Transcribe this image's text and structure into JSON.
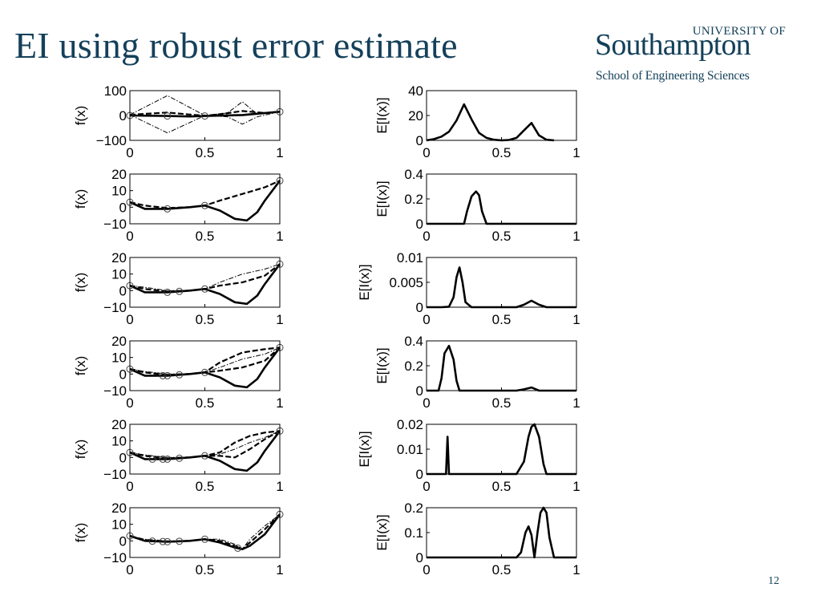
{
  "slide": {
    "title": "EI using robust error estimate",
    "page_number": "12"
  },
  "logo": {
    "university_of": "UNIVERSITY OF",
    "name": "Southampton",
    "school": "School of Engineering Sciences"
  },
  "colors": {
    "title": "#14405a",
    "plot": "#000000"
  },
  "chart_data": [
    {
      "type": "line",
      "panel": "left-1",
      "ylabel": "f(x)",
      "xlabel": "",
      "xlim": [
        0,
        1
      ],
      "ylim": [
        -100,
        100
      ],
      "xticks": [
        "0",
        "0.5",
        "1"
      ],
      "yticks": [
        "100",
        "0",
        "−100"
      ],
      "samples": [
        0,
        0.25,
        0.5,
        1
      ],
      "series": [
        {
          "style": "solid",
          "x": [
            0,
            0.25,
            0.4,
            0.5,
            0.75,
            1
          ],
          "y": [
            0,
            -2,
            -4,
            -2,
            2,
            15
          ]
        },
        {
          "style": "dashed",
          "x": [
            0,
            0.25,
            0.4,
            0.5,
            0.6,
            0.75,
            0.9,
            1
          ],
          "y": [
            3,
            12,
            4,
            -1,
            5,
            18,
            10,
            15
          ]
        },
        {
          "style": "dashdot",
          "x": [
            0,
            0.25,
            0.5,
            0.65,
            0.75,
            0.85,
            1
          ],
          "y": [
            3,
            80,
            0,
            10,
            55,
            5,
            15
          ]
        },
        {
          "style": "dashdot",
          "x": [
            0,
            0.25,
            0.5,
            0.65,
            0.75,
            0.85,
            1
          ],
          "y": [
            3,
            -70,
            0,
            -5,
            -35,
            -5,
            15
          ]
        }
      ]
    },
    {
      "type": "line",
      "panel": "right-1",
      "ylabel": "E[I(x)]",
      "xlabel": "",
      "xlim": [
        0,
        1
      ],
      "ylim": [
        0,
        40
      ],
      "xticks": [
        "0",
        "0.5",
        "1"
      ],
      "yticks": [
        "40",
        "20",
        "0"
      ],
      "series": [
        {
          "style": "solid",
          "x": [
            0,
            0.05,
            0.1,
            0.15,
            0.2,
            0.25,
            0.3,
            0.35,
            0.4,
            0.45,
            0.5,
            0.55,
            0.6,
            0.65,
            0.7,
            0.75,
            0.8,
            0.85
          ],
          "y": [
            0,
            1,
            3,
            7,
            16,
            29,
            17,
            6,
            2,
            0.5,
            0,
            0.3,
            2,
            8,
            14,
            4,
            0.5,
            0
          ]
        }
      ]
    },
    {
      "type": "line",
      "panel": "left-2",
      "ylabel": "f(x)",
      "xlabel": "",
      "xlim": [
        0,
        1
      ],
      "ylim": [
        -10,
        20
      ],
      "xticks": [
        "0",
        "0.5",
        "1"
      ],
      "yticks": [
        "20",
        "10",
        "0",
        "−10"
      ],
      "samples": [
        0,
        0.25,
        0.5,
        1
      ],
      "series": [
        {
          "style": "solid",
          "x": [
            0,
            0.1,
            0.25,
            0.4,
            0.5,
            0.6,
            0.7,
            0.78,
            0.85,
            0.9,
            1
          ],
          "y": [
            3,
            -1,
            -1,
            0,
            1,
            -2,
            -7,
            -8,
            -3,
            4,
            16
          ]
        },
        {
          "style": "dashed",
          "x": [
            0,
            0.1,
            0.25,
            0.4,
            0.5,
            0.6,
            0.75,
            0.9,
            1
          ],
          "y": [
            3,
            1,
            -0.5,
            0,
            1,
            4,
            8,
            12,
            16
          ]
        }
      ]
    },
    {
      "type": "line",
      "panel": "right-2",
      "ylabel": "E[I(x)]",
      "xlabel": "",
      "xlim": [
        0,
        1
      ],
      "ylim": [
        0,
        0.4
      ],
      "xticks": [
        "0",
        "0.5",
        "1"
      ],
      "yticks": [
        "0.4",
        "0.2",
        "0"
      ],
      "series": [
        {
          "style": "solid",
          "x": [
            0,
            0.22,
            0.25,
            0.27,
            0.3,
            0.33,
            0.35,
            0.37,
            0.4,
            0.45,
            1
          ],
          "y": [
            0,
            0,
            0,
            0.1,
            0.22,
            0.26,
            0.23,
            0.1,
            0,
            0,
            0
          ]
        }
      ]
    },
    {
      "type": "line",
      "panel": "left-3",
      "ylabel": "f(x)",
      "xlabel": "",
      "xlim": [
        0,
        1
      ],
      "ylim": [
        -10,
        20
      ],
      "xticks": [
        "0",
        "0.5",
        "1"
      ],
      "yticks": [
        "20",
        "10",
        "0",
        "−10"
      ],
      "samples": [
        0,
        0.25,
        0.33,
        0.5,
        1
      ],
      "series": [
        {
          "style": "solid",
          "x": [
            0,
            0.1,
            0.25,
            0.4,
            0.5,
            0.6,
            0.7,
            0.78,
            0.85,
            0.9,
            1
          ],
          "y": [
            3,
            -1,
            -1,
            0,
            1,
            -2,
            -7,
            -8,
            -3,
            4,
            16
          ]
        },
        {
          "style": "dashed",
          "x": [
            0,
            0.1,
            0.25,
            0.4,
            0.5,
            0.6,
            0.75,
            0.9,
            1
          ],
          "y": [
            3,
            1,
            -0.5,
            0,
            1,
            3,
            5,
            9,
            16
          ]
        },
        {
          "style": "dashdot",
          "x": [
            0,
            0.1,
            0.25,
            0.4,
            0.5,
            0.6,
            0.75,
            0.9,
            1
          ],
          "y": [
            3,
            2,
            0,
            0,
            1,
            5,
            10,
            13,
            16
          ]
        }
      ]
    },
    {
      "type": "line",
      "panel": "right-3",
      "ylabel": "E[I(x)]",
      "xlabel": "",
      "xlim": [
        0,
        1
      ],
      "ylim": [
        0,
        0.01
      ],
      "xticks": [
        "0",
        "0.5",
        "1"
      ],
      "yticks": [
        "0.01",
        "0.005",
        "0"
      ],
      "series": [
        {
          "style": "solid",
          "x": [
            0,
            0.1,
            0.15,
            0.18,
            0.2,
            0.22,
            0.24,
            0.26,
            0.3,
            0.6,
            0.65,
            0.7,
            0.75,
            0.8,
            1
          ],
          "y": [
            0,
            0,
            0.0001,
            0.002,
            0.006,
            0.008,
            0.005,
            0.001,
            0,
            0,
            0.0005,
            0.0013,
            0.0005,
            0,
            0
          ]
        }
      ]
    },
    {
      "type": "line",
      "panel": "left-4",
      "ylabel": "f(x)",
      "xlabel": "",
      "xlim": [
        0,
        1
      ],
      "ylim": [
        -10,
        20
      ],
      "xticks": [
        "0",
        "0.5",
        "1"
      ],
      "yticks": [
        "20",
        "10",
        "0",
        "−10"
      ],
      "samples": [
        0,
        0.22,
        0.25,
        0.33,
        0.5,
        1
      ],
      "series": [
        {
          "style": "solid",
          "x": [
            0,
            0.1,
            0.25,
            0.4,
            0.5,
            0.6,
            0.7,
            0.78,
            0.85,
            0.9,
            1
          ],
          "y": [
            3,
            -1,
            -1,
            0,
            1,
            -2,
            -7,
            -8,
            -3,
            4,
            16
          ]
        },
        {
          "style": "dashed",
          "x": [
            0,
            0.1,
            0.25,
            0.4,
            0.5,
            0.6,
            0.75,
            0.9,
            1
          ],
          "y": [
            3,
            1,
            -0.5,
            0,
            1,
            7,
            13,
            15,
            16
          ]
        },
        {
          "style": "dashed",
          "x": [
            0,
            0.1,
            0.25,
            0.4,
            0.5,
            0.6,
            0.75,
            0.9,
            1
          ],
          "y": [
            3,
            1,
            -0.5,
            0,
            1,
            2,
            4,
            8,
            16
          ]
        },
        {
          "style": "dashdot",
          "x": [
            0,
            0.1,
            0.25,
            0.4,
            0.5,
            0.6,
            0.75,
            0.9,
            1
          ],
          "y": [
            3,
            1.5,
            0,
            0,
            1,
            4,
            9,
            12,
            16
          ]
        }
      ]
    },
    {
      "type": "line",
      "panel": "right-4",
      "ylabel": "E[I(x)]",
      "xlabel": "",
      "xlim": [
        0,
        1
      ],
      "ylim": [
        0,
        0.4
      ],
      "xticks": [
        "0",
        "0.5",
        "1"
      ],
      "yticks": [
        "0.4",
        "0.2",
        "0"
      ],
      "series": [
        {
          "style": "solid",
          "x": [
            0,
            0.08,
            0.1,
            0.12,
            0.15,
            0.18,
            0.2,
            0.22,
            0.6,
            0.65,
            0.7,
            0.75,
            1
          ],
          "y": [
            0,
            0,
            0.1,
            0.3,
            0.36,
            0.25,
            0.08,
            0,
            0,
            0.01,
            0.025,
            0,
            0
          ]
        }
      ]
    },
    {
      "type": "line",
      "panel": "left-5",
      "ylabel": "f(x)",
      "xlabel": "",
      "xlim": [
        0,
        1
      ],
      "ylim": [
        -10,
        20
      ],
      "xticks": [
        "0",
        "0.5",
        "1"
      ],
      "yticks": [
        "20",
        "10",
        "0",
        "−10"
      ],
      "samples": [
        0,
        0.15,
        0.22,
        0.25,
        0.33,
        0.5,
        1
      ],
      "series": [
        {
          "style": "solid",
          "x": [
            0,
            0.1,
            0.25,
            0.4,
            0.5,
            0.6,
            0.7,
            0.78,
            0.85,
            0.9,
            1
          ],
          "y": [
            3,
            -1,
            -1,
            0,
            1,
            -2,
            -7,
            -8,
            -3,
            4,
            16
          ]
        },
        {
          "style": "dashed",
          "x": [
            0,
            0.1,
            0.25,
            0.4,
            0.5,
            0.6,
            0.7,
            0.8,
            0.9,
            1
          ],
          "y": [
            3,
            1,
            -0.5,
            0,
            1,
            3,
            9,
            13,
            15,
            16
          ]
        },
        {
          "style": "dashed",
          "x": [
            0,
            0.1,
            0.25,
            0.4,
            0.5,
            0.6,
            0.7,
            0.8,
            0.9,
            1
          ],
          "y": [
            3,
            1,
            -0.5,
            0,
            1,
            1,
            0,
            5,
            11,
            16
          ]
        },
        {
          "style": "dashdot",
          "x": [
            0,
            0.1,
            0.25,
            0.4,
            0.5,
            0.6,
            0.7,
            0.8,
            0.9,
            1
          ],
          "y": [
            3,
            1.5,
            0,
            0,
            1,
            2,
            5,
            9,
            12,
            16
          ]
        }
      ]
    },
    {
      "type": "line",
      "panel": "right-5",
      "ylabel": "E[I(x)]",
      "xlabel": "",
      "xlim": [
        0,
        1
      ],
      "ylim": [
        0,
        0.02
      ],
      "xticks": [
        "0",
        "0.5",
        "1"
      ],
      "yticks": [
        "0.02",
        "0.01",
        "0"
      ],
      "series": [
        {
          "style": "solid",
          "x": [
            0,
            0.13,
            0.14,
            0.15,
            0.16,
            0.6,
            0.65,
            0.68,
            0.7,
            0.72,
            0.75,
            0.78,
            0.8,
            1
          ],
          "y": [
            0,
            0,
            0.015,
            0,
            0,
            0,
            0.005,
            0.015,
            0.019,
            0.02,
            0.015,
            0.004,
            0,
            0
          ]
        }
      ]
    },
    {
      "type": "line",
      "panel": "left-6",
      "ylabel": "f(x)",
      "xlabel": "",
      "xlim": [
        0,
        1
      ],
      "ylim": [
        -10,
        20
      ],
      "xticks": [
        "0",
        "0.5",
        "1"
      ],
      "yticks": [
        "20",
        "10",
        "0",
        "−10"
      ],
      "samples": [
        0,
        0.15,
        0.22,
        0.25,
        0.33,
        0.5,
        0.72,
        1
      ],
      "series": [
        {
          "style": "solid",
          "x": [
            0,
            0.1,
            0.25,
            0.4,
            0.5,
            0.6,
            0.7,
            0.75,
            0.8,
            0.9,
            1
          ],
          "y": [
            3,
            0,
            -0.5,
            0,
            1,
            -1,
            -4,
            -5,
            -3,
            4,
            16
          ]
        },
        {
          "style": "dashed",
          "x": [
            0,
            0.1,
            0.25,
            0.4,
            0.5,
            0.6,
            0.7,
            0.75,
            0.8,
            0.9,
            1
          ],
          "y": [
            3,
            0.5,
            -0.5,
            0,
            1,
            0,
            -3,
            -5,
            -1,
            7,
            16
          ]
        },
        {
          "style": "dashdot",
          "x": [
            0,
            0.1,
            0.25,
            0.4,
            0.5,
            0.6,
            0.7,
            0.75,
            0.8,
            0.9,
            1
          ],
          "y": [
            3,
            1,
            0,
            0,
            1,
            1,
            -2,
            -5,
            1,
            9,
            16
          ]
        }
      ]
    },
    {
      "type": "line",
      "panel": "right-6",
      "ylabel": "E[I(x)]",
      "xlabel": "",
      "xlim": [
        0,
        1
      ],
      "ylim": [
        0,
        0.2
      ],
      "xticks": [
        "0",
        "0.5",
        "1"
      ],
      "yticks": [
        "0.2",
        "0.1",
        "0"
      ],
      "series": [
        {
          "style": "solid",
          "x": [
            0,
            0.6,
            0.63,
            0.66,
            0.68,
            0.7,
            0.72,
            0.74,
            0.76,
            0.78,
            0.8,
            0.82,
            0.85,
            1
          ],
          "y": [
            0,
            0,
            0.02,
            0.1,
            0.125,
            0.09,
            0,
            0.1,
            0.18,
            0.2,
            0.18,
            0.08,
            0,
            0
          ]
        }
      ]
    }
  ]
}
